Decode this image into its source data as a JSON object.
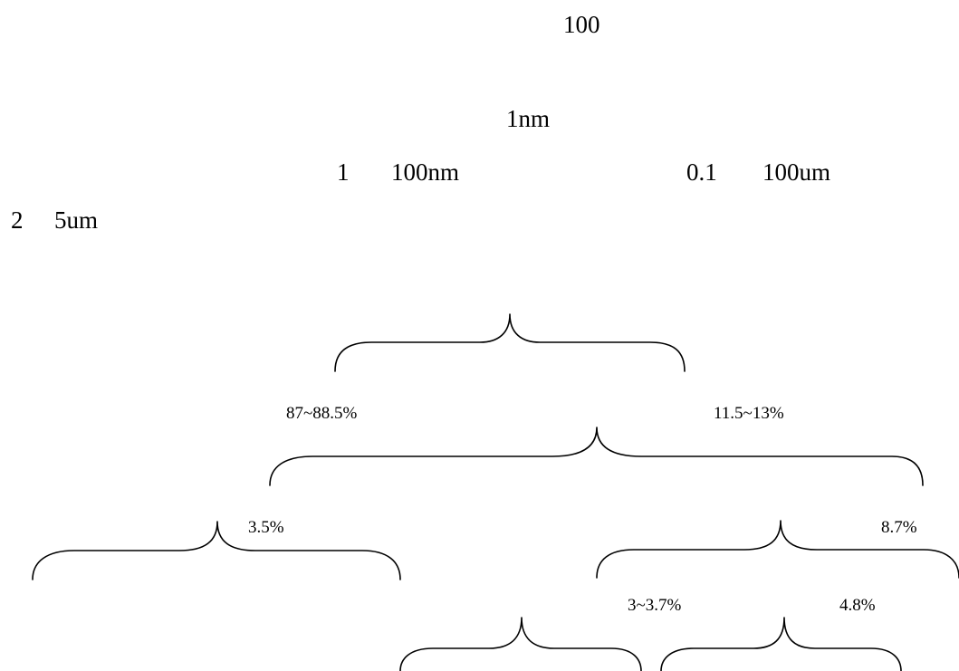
{
  "text_lines": {
    "line1": "100",
    "line2": "1nm",
    "line3_a": "1",
    "line3_b": "100nm",
    "line3_c": "0.1",
    "line3_d": "100um",
    "line4_a": "2",
    "line4_b": "5um"
  },
  "diagram": {
    "labels": {
      "level1_left": "87~88.5%",
      "level1_right": "11.5~13%",
      "level2_left": "3.5%",
      "level2_right": "8.7%",
      "level3_left": "3~3.7%",
      "level3_right": "4.8%"
    }
  }
}
